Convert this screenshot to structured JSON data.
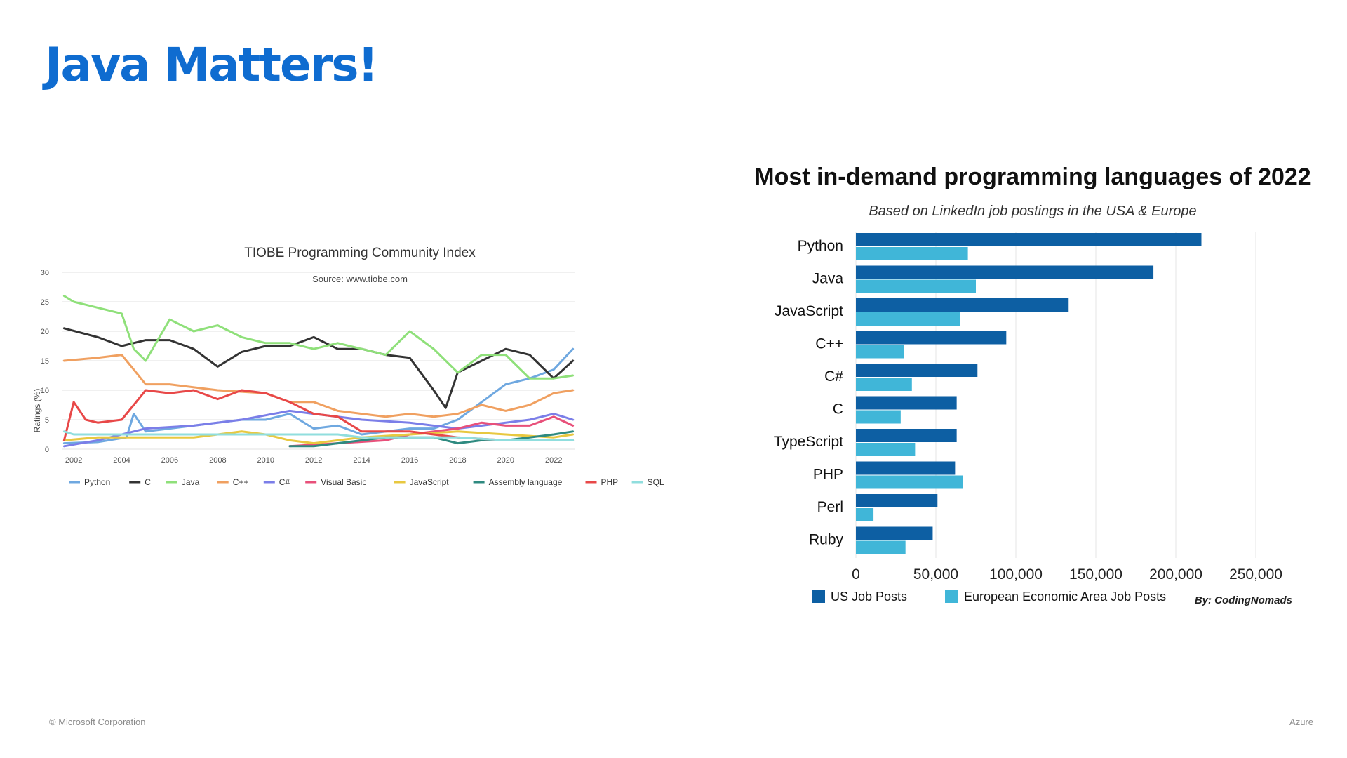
{
  "slide": {
    "title": "Java Matters!",
    "footer_left": "© Microsoft Corporation",
    "footer_right": "Azure"
  },
  "chart_data": [
    {
      "type": "line",
      "title": "TIOBE Programming Community Index",
      "subtitle": "Source: www.tiobe.com",
      "ylabel": "Ratings (%)",
      "xlabel": "",
      "xlim": [
        2001.5,
        2022.9
      ],
      "ylim": [
        0,
        30
      ],
      "yticks": [
        "0",
        "5",
        "10",
        "15",
        "20",
        "25",
        "30"
      ],
      "xticks": [
        "2002",
        "2004",
        "2006",
        "2008",
        "2010",
        "2012",
        "2014",
        "2016",
        "2018",
        "2020",
        "2022"
      ],
      "grid": true,
      "legend_position": "bottom",
      "series": [
        {
          "name": "Python",
          "color": "#6fa8e0",
          "x": [
            2001.6,
            2003,
            2004.2,
            2004.5,
            2005,
            2006,
            2008,
            2009,
            2010,
            2011,
            2012,
            2013,
            2014,
            2016,
            2017,
            2018,
            2019,
            2020,
            2021,
            2022,
            2022.8
          ],
          "values": [
            1,
            1.2,
            2,
            6,
            3,
            3.5,
            4.5,
            5,
            5,
            6,
            3.5,
            4,
            2.5,
            3.5,
            3.5,
            5,
            8,
            11,
            12,
            13.5,
            17
          ]
        },
        {
          "name": "C",
          "color": "#333333",
          "x": [
            2001.6,
            2003,
            2004,
            2005,
            2006,
            2007,
            2008,
            2009,
            2010,
            2011,
            2012,
            2013,
            2014,
            2015,
            2016,
            2017,
            2017.5,
            2018,
            2019,
            2020,
            2021,
            2022,
            2022.8
          ],
          "values": [
            20.5,
            19,
            17.5,
            18.5,
            18.5,
            17,
            14,
            16.5,
            17.5,
            17.5,
            19,
            17,
            17,
            16,
            15.5,
            10,
            7,
            13,
            15,
            17,
            16,
            12,
            15
          ]
        },
        {
          "name": "Java",
          "color": "#8fe07a",
          "x": [
            2001.6,
            2002,
            2003,
            2004,
            2004.5,
            2005,
            2006,
            2007,
            2008,
            2009,
            2010,
            2011,
            2012,
            2013,
            2014,
            2015,
            2016,
            2017,
            2018,
            2019,
            2020,
            2021,
            2022,
            2022.8
          ],
          "values": [
            26,
            25,
            24,
            23,
            17,
            15,
            22,
            20,
            21,
            19,
            18,
            18,
            17,
            18,
            17,
            16,
            20,
            17,
            13,
            16,
            16,
            12,
            12,
            12.5
          ]
        },
        {
          "name": "C++",
          "color": "#f0a060",
          "x": [
            2001.6,
            2003,
            2004,
            2005,
            2006,
            2008,
            2010,
            2011,
            2012,
            2013,
            2014,
            2015,
            2016,
            2017,
            2018,
            2019,
            2020,
            2021,
            2022,
            2022.8
          ],
          "values": [
            15,
            15.5,
            16,
            11,
            11,
            10,
            9.5,
            8,
            8,
            6.5,
            6,
            5.5,
            6,
            5.5,
            6,
            7.5,
            6.5,
            7.5,
            9.5,
            10
          ]
        },
        {
          "name": "C#",
          "color": "#7b7ee8",
          "x": [
            2001.6,
            2003,
            2005,
            2007,
            2009,
            2011,
            2012,
            2014,
            2016,
            2018,
            2020,
            2021,
            2022,
            2022.8
          ],
          "values": [
            0.5,
            1.5,
            3.5,
            4,
            5,
            6.5,
            6,
            5,
            4.5,
            3.5,
            4.5,
            5,
            6,
            5
          ]
        },
        {
          "name": "Visual Basic",
          "color": "#e8507a",
          "x": [
            2011,
            2013,
            2015,
            2016,
            2018,
            2019,
            2020,
            2021,
            2022,
            2022.8
          ],
          "values": [
            0.5,
            1,
            1.5,
            2.5,
            3.5,
            4.5,
            4,
            4,
            5.5,
            4
          ]
        },
        {
          "name": "JavaScript",
          "color": "#e8c840",
          "x": [
            2001.6,
            2003,
            2005,
            2007,
            2009,
            2010,
            2011,
            2012,
            2014,
            2016,
            2018,
            2020,
            2022,
            2022.8
          ],
          "values": [
            1.5,
            2,
            2,
            2,
            3,
            2.5,
            1.5,
            1,
            2,
            2.5,
            3,
            2.5,
            2,
            2.5
          ]
        },
        {
          "name": "Assembly language",
          "color": "#2e8a80",
          "x": [
            2011,
            2012,
            2013,
            2014,
            2015,
            2016,
            2017,
            2018,
            2019,
            2020,
            2021,
            2022,
            2022.8
          ],
          "values": [
            0.5,
            0.5,
            1,
            1.5,
            2,
            2,
            2,
            1,
            1.5,
            1.5,
            2,
            2.5,
            3
          ]
        },
        {
          "name": "PHP",
          "color": "#e84848",
          "x": [
            2001.6,
            2002,
            2002.5,
            2003,
            2004,
            2005,
            2006,
            2007,
            2008,
            2009,
            2010,
            2011,
            2012,
            2013,
            2014,
            2016,
            2018,
            2020,
            2022,
            2022.8
          ],
          "values": [
            1.5,
            8,
            5,
            4.5,
            5,
            10,
            9.5,
            10,
            8.5,
            10,
            9.5,
            8,
            6,
            5.5,
            3,
            3,
            2,
            1.5,
            1.5,
            1.5
          ]
        },
        {
          "name": "SQL",
          "color": "#90dede",
          "x": [
            2001.6,
            2002,
            2004,
            2005,
            2008,
            2011,
            2013,
            2014,
            2016,
            2018,
            2020,
            2022,
            2022.8
          ],
          "values": [
            3,
            2.5,
            2.5,
            2.5,
            2.5,
            2.5,
            2.5,
            2,
            2,
            2,
            1.5,
            1.5,
            1.5
          ]
        }
      ]
    },
    {
      "type": "bar",
      "orientation": "horizontal",
      "title": "Most in-demand programming languages of 2022",
      "subtitle": "Based on LinkedIn job postings in the USA & Europe",
      "credit": "By: CodingNomads",
      "categories": [
        "Python",
        "Java",
        "JavaScript",
        "C++",
        "C#",
        "C",
        "TypeScript",
        "PHP",
        "Perl",
        "Ruby"
      ],
      "xlim": [
        0,
        250000
      ],
      "xticks": [
        "0",
        "50,000",
        "100,000",
        "150,000",
        "200,000",
        "250,000"
      ],
      "grid": true,
      "legend_position": "bottom",
      "series": [
        {
          "name": "US Job Posts",
          "color": "#0d5fa3",
          "values": [
            216000,
            186000,
            133000,
            94000,
            76000,
            63000,
            63000,
            62000,
            51000,
            48000
          ]
        },
        {
          "name": "European Economic Area Job Posts",
          "color": "#40b6d8",
          "values": [
            70000,
            75000,
            65000,
            30000,
            35000,
            28000,
            37000,
            67000,
            11000,
            31000
          ]
        }
      ]
    }
  ]
}
